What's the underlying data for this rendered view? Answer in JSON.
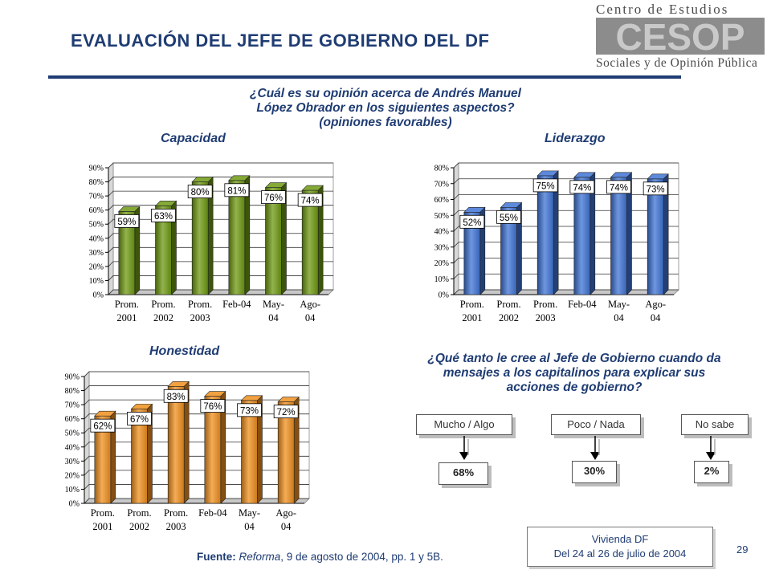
{
  "header": {
    "title": "EVALUACIÓN DEL JEFE DE GOBIERNO DEL DF",
    "logo_top": "Centro de Estudios",
    "logo_mark": "CESOP",
    "logo_bottom": "Sociales y de Opinión Pública"
  },
  "question_main": {
    "line1": "¿Cuál es su opinión acerca de Andrés Manuel",
    "line2": "López Obrador en los siguientes aspectos?",
    "line3": "(opiniones favorables)"
  },
  "chart_data": [
    {
      "type": "bar",
      "title": "Capacidad",
      "categories": [
        [
          "Prom.",
          "2001"
        ],
        [
          "Prom.",
          "2002"
        ],
        [
          "Prom.",
          "2003"
        ],
        [
          "Feb-04",
          ""
        ],
        [
          "May-",
          "04"
        ],
        [
          "Ago-",
          "04"
        ]
      ],
      "values": [
        59,
        63,
        80,
        81,
        76,
        74
      ],
      "value_labels": [
        "59%",
        "63%",
        "80%",
        "81%",
        "76%",
        "74%"
      ],
      "ylim": [
        0,
        90
      ],
      "yticks": [
        "0%",
        "10%",
        "20%",
        "30%",
        "40%",
        "50%",
        "60%",
        "70%",
        "80%",
        "90%"
      ],
      "color": "#6f9a12",
      "grid": true
    },
    {
      "type": "bar",
      "title": "Liderazgo",
      "categories": [
        [
          "Prom.",
          "2001"
        ],
        [
          "Prom.",
          "2002"
        ],
        [
          "Prom.",
          "2003"
        ],
        [
          "Feb-04",
          ""
        ],
        [
          "May-",
          "04"
        ],
        [
          "Ago-",
          "04"
        ]
      ],
      "values": [
        52,
        55,
        75,
        74,
        74,
        73
      ],
      "value_labels": [
        "52%",
        "55%",
        "75%",
        "74%",
        "74%",
        "73%"
      ],
      "ylim": [
        0,
        80
      ],
      "yticks": [
        "0%",
        "10%",
        "20%",
        "30%",
        "40%",
        "50%",
        "60%",
        "70%",
        "80%"
      ],
      "color": "#3f74d6",
      "grid": true
    },
    {
      "type": "bar",
      "title": "Honestidad",
      "categories": [
        [
          "Prom.",
          "2001"
        ],
        [
          "Prom.",
          "2002"
        ],
        [
          "Prom.",
          "2003"
        ],
        [
          "Feb-04",
          ""
        ],
        [
          "May-",
          "04"
        ],
        [
          "Ago-",
          "04"
        ]
      ],
      "values": [
        62,
        67,
        83,
        76,
        73,
        72
      ],
      "value_labels": [
        "62%",
        "67%",
        "83%",
        "76%",
        "73%",
        "72%"
      ],
      "ylim": [
        0,
        90
      ],
      "yticks": [
        "0%",
        "10%",
        "20%",
        "30%",
        "40%",
        "50%",
        "60%",
        "70%",
        "80%",
        "90%"
      ],
      "color": "#f0901e",
      "grid": true
    }
  ],
  "question_second": {
    "line1": "¿Qué tanto le cree al Jefe de Gobierno cuando da",
    "line2": "mensajes a los capitalinos para explicar sus",
    "line3": "acciones de gobierno?"
  },
  "responses": [
    {
      "label": "Mucho / Algo",
      "value": "68%"
    },
    {
      "label": "Poco / Nada",
      "value": "30%"
    },
    {
      "label": "No sabe",
      "value": "2%"
    }
  ],
  "source": {
    "prefix": "Fuente:",
    "publication": "Reforma",
    "rest": ", 9 de agosto de 2004, pp. 1 y 5B."
  },
  "survey_note": {
    "line1": "Vivienda DF",
    "line2": "Del 24 al 26 de julio de 2004"
  },
  "page_number": "29",
  "colors": {
    "title": "#1f3c73",
    "capacidad": "#6f9a12",
    "liderazgo": "#3f74d6",
    "honestidad": "#f0901e"
  }
}
